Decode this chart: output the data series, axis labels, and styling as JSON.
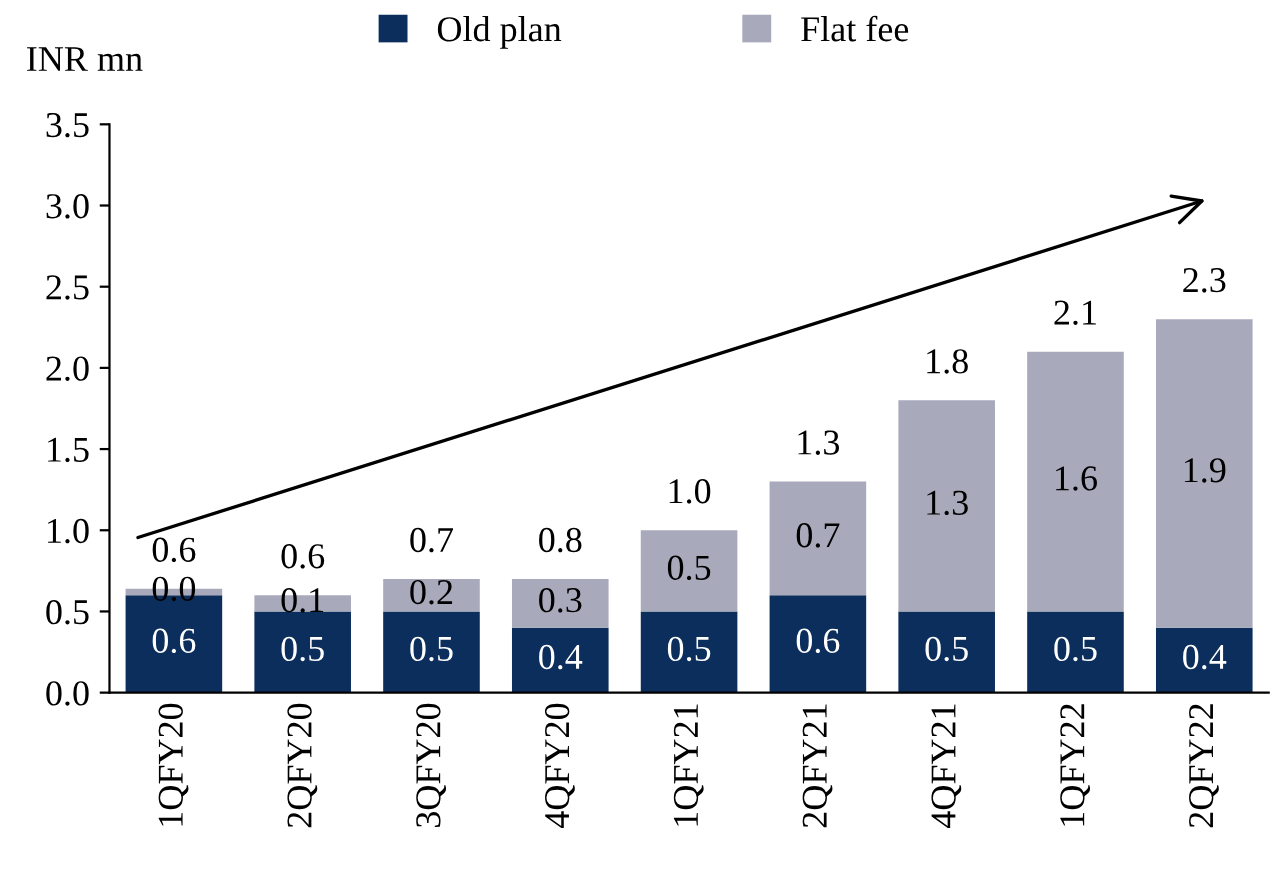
{
  "chart_data": {
    "type": "bar",
    "stacked": true,
    "ylabel": "INR mn",
    "categories": [
      "1QFY20",
      "2QFY20",
      "3QFY20",
      "4QFY20",
      "1QFY21",
      "2QFY21",
      "4QFY21",
      "1QFY22",
      "2QFY22"
    ],
    "series": [
      {
        "name": "Old plan",
        "color": "#0c2e5c",
        "values": [
          0.6,
          0.5,
          0.5,
          0.4,
          0.5,
          0.6,
          0.5,
          0.5,
          0.4
        ],
        "value_labels": [
          "0.6",
          "0.5",
          "0.5",
          "0.4",
          "0.5",
          "0.6",
          "0.5",
          "0.5",
          "0.4"
        ]
      },
      {
        "name": "Flat fee",
        "color": "#a8aabb",
        "values": [
          0.04,
          0.1,
          0.2,
          0.3,
          0.5,
          0.7,
          1.3,
          1.6,
          1.9
        ],
        "value_labels": [
          "0.0",
          "0.1",
          "0.2",
          "0.3",
          "0.5",
          "0.7",
          "1.3",
          "1.6",
          "1.9"
        ]
      }
    ],
    "totals": [
      "0.6",
      "0.6",
      "0.7",
      "0.8",
      "1.0",
      "1.3",
      "1.8",
      "2.1",
      "2.3"
    ],
    "ylim": [
      0,
      3.5
    ],
    "yticks": [
      {
        "value": 0,
        "label": "0.0"
      },
      {
        "value": 0.5,
        "label": "0.5"
      },
      {
        "value": 1,
        "label": "1.0"
      },
      {
        "value": 1.5,
        "label": "1.5"
      },
      {
        "value": 2,
        "label": "2.0"
      },
      {
        "value": 2.5,
        "label": "2.5"
      },
      {
        "value": 3,
        "label": "3.0"
      },
      {
        "value": 3.5,
        "label": "3.5"
      }
    ],
    "legend": "top",
    "grid": false
  }
}
